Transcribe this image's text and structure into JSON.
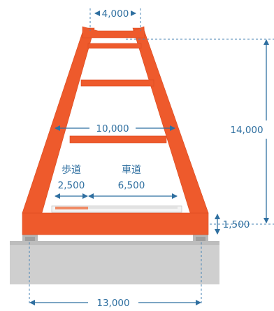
{
  "dimensions": {
    "top_width": "4,000",
    "mid_width": "10,000",
    "total_height": "14,000",
    "base_height": "1,500",
    "base_width": "13,000"
  },
  "deck": {
    "sidewalk_label": "歩道",
    "sidewalk_width": "2,500",
    "roadway_label": "車道",
    "roadway_width": "6,500"
  },
  "colors": {
    "steel": "#ee5a2c",
    "dimension": "#2f6fa0",
    "pier": "#cfcfcf",
    "sidewalk_strip": "#f08a64"
  }
}
